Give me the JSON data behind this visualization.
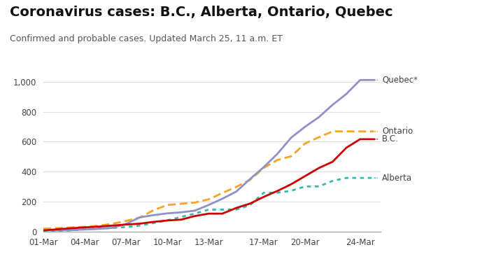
{
  "title": "Coronavirus cases: B.C., Alberta, Ontario, Quebec",
  "subtitle": "Confirmed and probable cases. Updated March 25, 11 a.m. ET",
  "title_fontsize": 14,
  "subtitle_fontsize": 9,
  "background_color": "#ffffff",
  "dates": [
    1,
    2,
    3,
    4,
    5,
    6,
    7,
    8,
    9,
    10,
    11,
    12,
    13,
    14,
    15,
    16,
    17,
    18,
    19,
    20,
    21,
    22,
    23,
    24,
    25
  ],
  "date_labels": [
    "01-Mar",
    "04-Mar",
    "07-Mar",
    "10-Mar",
    "13-Mar",
    "17-Mar",
    "20-Mar",
    "24-Mar"
  ],
  "date_ticks": [
    1,
    4,
    7,
    10,
    13,
    17,
    20,
    24
  ],
  "quebec": [
    7,
    7,
    9,
    13,
    17,
    24,
    50,
    94,
    109,
    121,
    128,
    139,
    177,
    219,
    266,
    350,
    430,
    520,
    628,
    700,
    764,
    847,
    920,
    1013,
    1013
  ],
  "ontario": [
    18,
    22,
    27,
    31,
    38,
    51,
    70,
    93,
    142,
    177,
    185,
    193,
    215,
    257,
    298,
    344,
    425,
    478,
    503,
    588,
    630,
    669,
    669,
    669,
    669
  ],
  "bc": [
    7,
    14,
    21,
    27,
    32,
    39,
    46,
    52,
    64,
    73,
    79,
    103,
    119,
    119,
    157,
    186,
    231,
    271,
    316,
    370,
    424,
    466,
    560,
    617,
    617
  ],
  "alberta": [
    1,
    4,
    7,
    14,
    19,
    23,
    29,
    39,
    56,
    74,
    97,
    119,
    146,
    146,
    146,
    175,
    259,
    259,
    272,
    301,
    301,
    338,
    358,
    358,
    358
  ],
  "quebec_color": "#9090c8",
  "ontario_color": "#f5a428",
  "bc_color": "#cc0000",
  "alberta_color": "#3ab8b0",
  "ylim": [
    0,
    1050
  ],
  "yticks": [
    0,
    200,
    400,
    600,
    800,
    1000
  ],
  "xlim": [
    1,
    25.5
  ],
  "linewidth": 2.0,
  "label_quebec": "Quebec*",
  "label_ontario": "Ontario",
  "label_bc": "B.C.",
  "label_alberta": "Alberta"
}
